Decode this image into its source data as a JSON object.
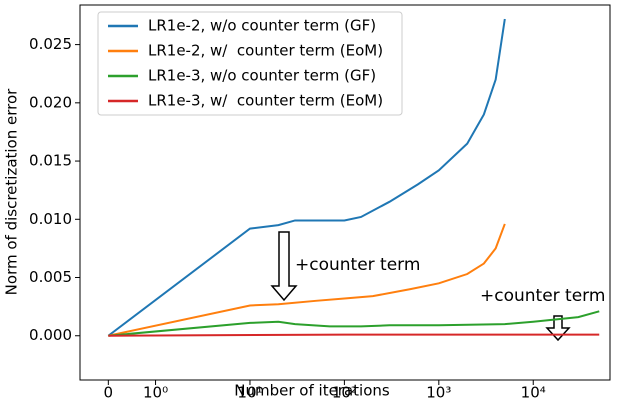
{
  "chart_data": {
    "type": "line",
    "xlabel": "Number of iterations",
    "ylabel": "Norm of discretization error",
    "xscale": "symlog",
    "linthresh": 1,
    "linscale": 0.5,
    "xlim": [
      -0.6,
      65000
    ],
    "xticks": [
      0,
      {
        "value": 1,
        "label": "10⁰"
      },
      {
        "value": 10,
        "label": "10¹"
      },
      {
        "value": 100,
        "label": "10²"
      },
      {
        "value": 1000,
        "label": "10³"
      },
      {
        "value": 10000,
        "label": "10⁴"
      }
    ],
    "ylim": [
      -0.0038,
      0.0284
    ],
    "yticks": [
      {
        "value": 0,
        "label": "0.000"
      },
      {
        "value": 0.005,
        "label": "0.005"
      },
      {
        "value": 0.01,
        "label": "0.010"
      },
      {
        "value": 0.015,
        "label": "0.015"
      },
      {
        "value": 0.02,
        "label": "0.020"
      },
      {
        "value": 0.025,
        "label": "0.025"
      }
    ],
    "legend": "upper left",
    "series": [
      {
        "name": "LR1e-2, w/o counter term (GF)",
        "color": "#1f77b4",
        "x": [
          0,
          10,
          20,
          30,
          50,
          100,
          150,
          300,
          600,
          1000,
          2000,
          3000,
          4000,
          5000
        ],
        "values": [
          0,
          0.0092,
          0.0095,
          0.0099,
          0.0099,
          0.0099,
          0.0102,
          0.0115,
          0.013,
          0.0142,
          0.0165,
          0.019,
          0.022,
          0.0272
        ]
      },
      {
        "name": "LR1e-2, w/  counter term (EoM)",
        "color": "#ff7f0e",
        "x": [
          0,
          10,
          20,
          50,
          100,
          200,
          500,
          1000,
          2000,
          3000,
          4000,
          5000
        ],
        "values": [
          0,
          0.0026,
          0.0027,
          0.003,
          0.0032,
          0.0034,
          0.004,
          0.0045,
          0.0053,
          0.0062,
          0.0075,
          0.0096
        ]
      },
      {
        "name": "LR1e-3, w/o counter term (GF)",
        "color": "#2ca02c",
        "x": [
          0,
          10,
          20,
          30,
          70,
          150,
          300,
          1000,
          5000,
          10000,
          30000,
          50000
        ],
        "values": [
          0,
          0.0011,
          0.0012,
          0.001,
          0.0008,
          0.0008,
          0.0009,
          0.0009,
          0.001,
          0.0012,
          0.0016,
          0.0021
        ]
      },
      {
        "name": "LR1e-3, w/  counter term (EoM)",
        "color": "#d62728",
        "x": [
          0,
          100,
          1000,
          50000
        ],
        "values": [
          0,
          0.0001,
          0.0001,
          0.0001
        ]
      }
    ],
    "annotations": [
      "+counter term",
      "+counter term"
    ]
  }
}
